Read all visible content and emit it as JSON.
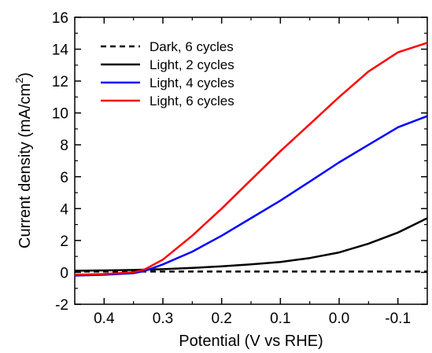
{
  "chart_data": {
    "type": "line",
    "title": "",
    "xlabel": "Potential (V vs RHE)",
    "ylabel": "Current density (mA/cm",
    "ylabel_superscript": "2",
    "ylabel_close": ")",
    "x_reversed": true,
    "xlim": [
      0.45,
      -0.15
    ],
    "ylim": [
      -2,
      16
    ],
    "xticks": [
      0.4,
      0.3,
      0.2,
      0.1,
      0.0,
      -0.1
    ],
    "xtick_labels": [
      "0.4",
      "0.3",
      "0.2",
      "0.1",
      "0.0",
      "-0.1"
    ],
    "yticks": [
      -2,
      0,
      2,
      4,
      6,
      8,
      10,
      12,
      14,
      16
    ],
    "ytick_labels": [
      "-2",
      "0",
      "2",
      "4",
      "6",
      "8",
      "10",
      "12",
      "14",
      "16"
    ],
    "grid": false,
    "legend_position": "top-left",
    "series": [
      {
        "name": "Dark, 6 cycles",
        "color": "#000000",
        "dashed": true,
        "x": [
          0.45,
          0.4,
          0.35,
          0.3,
          0.25,
          0.2,
          0.15,
          0.1,
          0.05,
          0.0,
          -0.05,
          -0.1,
          -0.15
        ],
        "y": [
          0.05,
          0.05,
          0.05,
          0.05,
          0.05,
          0.05,
          0.05,
          0.05,
          0.05,
          0.05,
          0.05,
          0.05,
          0.05
        ]
      },
      {
        "name": "Light, 2 cycles",
        "color": "#000000",
        "dashed": false,
        "x": [
          0.45,
          0.4,
          0.35,
          0.3,
          0.25,
          0.2,
          0.15,
          0.1,
          0.05,
          0.0,
          -0.05,
          -0.1,
          -0.15
        ],
        "y": [
          0.1,
          0.12,
          0.15,
          0.2,
          0.28,
          0.38,
          0.5,
          0.65,
          0.9,
          1.25,
          1.8,
          2.5,
          3.4
        ]
      },
      {
        "name": "Light, 4 cycles",
        "color": "#0000ff",
        "dashed": false,
        "x": [
          0.45,
          0.4,
          0.35,
          0.33,
          0.3,
          0.25,
          0.2,
          0.15,
          0.1,
          0.05,
          0.0,
          -0.05,
          -0.1,
          -0.15
        ],
        "y": [
          -0.2,
          -0.15,
          -0.05,
          0.1,
          0.5,
          1.3,
          2.3,
          3.4,
          4.5,
          5.7,
          6.9,
          8.0,
          9.1,
          9.8
        ]
      },
      {
        "name": "Light, 6 cycles",
        "color": "#ff0000",
        "dashed": false,
        "x": [
          0.45,
          0.4,
          0.35,
          0.33,
          0.3,
          0.25,
          0.2,
          0.15,
          0.1,
          0.05,
          0.0,
          -0.05,
          -0.1,
          -0.15
        ],
        "y": [
          -0.15,
          -0.1,
          0.0,
          0.2,
          0.8,
          2.3,
          4.0,
          5.8,
          7.6,
          9.3,
          11.0,
          12.6,
          13.8,
          14.4
        ]
      }
    ]
  }
}
